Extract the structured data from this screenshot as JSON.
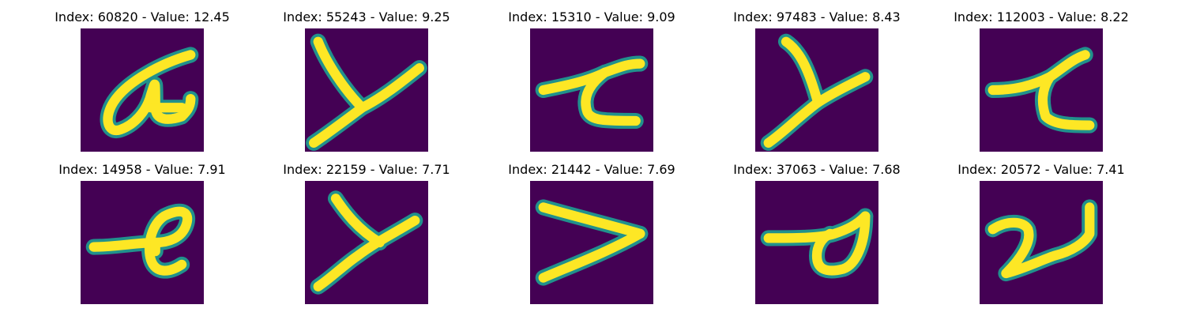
{
  "panels": [
    {
      "title": "Index: 60820 - Value: 12.45",
      "glyph": "alpha-loop-glyph"
    },
    {
      "title": "Index: 55243 - Value: 9.25",
      "glyph": "y-glyph"
    },
    {
      "title": "Index: 15310 - Value: 9.09",
      "glyph": "tau-glyph"
    },
    {
      "title": "Index: 97483 - Value: 8.43",
      "glyph": "y-glyph"
    },
    {
      "title": "Index: 112003 - Value: 8.22",
      "glyph": "tau-glyph"
    },
    {
      "title": "Index: 14958 - Value: 7.91",
      "glyph": "loop-glyph"
    },
    {
      "title": "Index: 22159 - Value: 7.71",
      "glyph": "y-glyph"
    },
    {
      "title": "Index: 21442 - Value: 7.69",
      "glyph": "v-glyph"
    },
    {
      "title": "Index: 37063 - Value: 7.68",
      "glyph": "loop-glyph"
    },
    {
      "title": "Index: 20572 - Value: 7.41",
      "glyph": "n-glyph"
    }
  ],
  "colors": {
    "background": "#440154",
    "stroke_edge": "#21918c",
    "stroke_core": "#fde725"
  }
}
